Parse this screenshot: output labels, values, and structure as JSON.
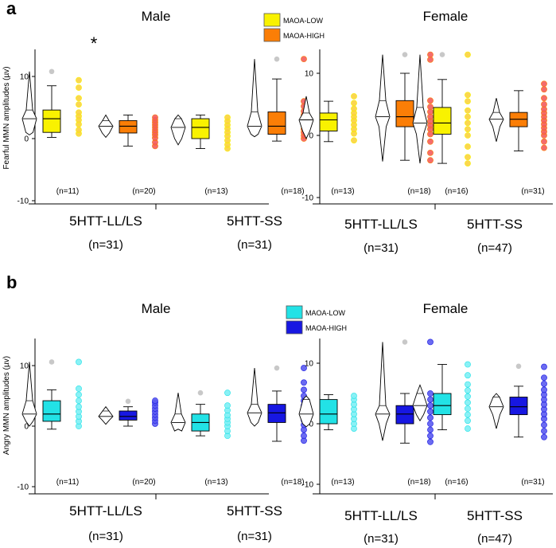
{
  "figure": {
    "panels": [
      {
        "letter": "a",
        "ylabel": "Fearful MMN amplitudes (µv)",
        "legend": [
          "MAOA-LOW",
          "MAOA-HIGH"
        ],
        "colors": {
          "low": "#f9f200",
          "high": "#fb7e06",
          "low_dot": "#fbd13d",
          "high_dot": "#f35c5c"
        }
      },
      {
        "letter": "b",
        "ylabel": "Angry MMN amplitudes (µv)",
        "legend": [
          "MAOA-LOW",
          "MAOA-HIGH"
        ],
        "colors": {
          "low": "#22e2e6",
          "high": "#1717e2",
          "low_dot": "#7df0f5",
          "high_dot": "#5b5bf0"
        }
      }
    ],
    "significance_marker": "*",
    "outlier_color": "#c8c8c8"
  },
  "chart_data": [
    {
      "panel": "a",
      "type": "box+violin",
      "title": "Male",
      "ylabel": "Fearful MMN amplitudes (µv)",
      "ylim": [
        -10,
        14
      ],
      "yticks": [
        -10,
        0,
        10
      ],
      "groups": [
        {
          "label": "5HTT-LL/LS",
          "total": "(n=31)",
          "boxes": [
            {
              "series": "MAOA-LOW",
              "n": "(n=11)",
              "q1": 1.0,
              "median": 3.2,
              "q3": 4.6,
              "whisker_low": 0.2,
              "whisker_high": 8.5,
              "outliers": [
                10.8
              ],
              "violin_min": 0.6,
              "violin_max": 10.8,
              "points": [
                0.8,
                1.4,
                2.3,
                3.0,
                3.6,
                4.2,
                5.5,
                6.5,
                8.2,
                9.4
              ]
            },
            {
              "series": "MAOA-HIGH",
              "n": "(n=20)",
              "q1": 0.9,
              "median": 2.0,
              "q3": 2.9,
              "whisker_low": -1.2,
              "whisker_high": 3.8,
              "outliers": [],
              "violin_min": 0.2,
              "violin_max": 3.8,
              "points": [
                -1.2,
                -0.6,
                0.1,
                0.6,
                1.0,
                1.4,
                1.8,
                2.2,
                2.6,
                3.0,
                3.4
              ]
            }
          ]
        },
        {
          "label": "5HTT-SS",
          "total": "(n=31)",
          "boxes": [
            {
              "series": "MAOA-LOW",
              "n": "(n=13)",
              "q1": 0.0,
              "median": 1.8,
              "q3": 3.2,
              "whisker_low": -1.6,
              "whisker_high": 3.8,
              "outliers": [],
              "violin_min": -1.0,
              "violin_max": 3.8,
              "points": [
                -1.6,
                -1.0,
                -0.3,
                0.4,
                1.0,
                1.6,
                2.2,
                2.8,
                3.4
              ]
            },
            {
              "series": "MAOA-HIGH",
              "n": "(n=18)",
              "q1": 0.7,
              "median": 2.0,
              "q3": 4.3,
              "whisker_low": -0.4,
              "whisker_high": 9.6,
              "outliers": [
                12.8
              ],
              "violin_min": 0.3,
              "violin_max": 12.8,
              "points": [
                0.0,
                0.5,
                1.0,
                1.5,
                2.0,
                2.6,
                3.2,
                3.8,
                4.4,
                5.2,
                6.0,
                12.8
              ]
            }
          ]
        }
      ]
    },
    {
      "panel": "a",
      "type": "box+violin",
      "title": "Female",
      "ylabel": "",
      "ylim": [
        -10,
        14
      ],
      "yticks": [
        -10,
        0,
        10
      ],
      "groups": [
        {
          "label": "5HTT-LL/LS",
          "total": "(n=31)",
          "boxes": [
            {
              "series": "MAOA-LOW",
              "n": "(n=13)",
              "q1": 0.7,
              "median": 2.5,
              "q3": 3.6,
              "whisker_low": -1.0,
              "whisker_high": 5.5,
              "outliers": [],
              "violin_min": -0.5,
              "violin_max": 6.3,
              "points": [
                -0.8,
                0.3,
                1.0,
                1.7,
                2.4,
                3.0,
                3.6,
                4.3,
                5.2,
                6.3
              ]
            },
            {
              "series": "MAOA-HIGH",
              "n": "(n=18)",
              "q1": 1.4,
              "median": 3.0,
              "q3": 5.6,
              "whisker_low": -4.0,
              "whisker_high": 10.0,
              "outliers": [
                13.0
              ],
              "violin_min": -4.2,
              "violin_max": 13.0,
              "points": [
                -4.0,
                -2.8,
                -1.0,
                0.2,
                1.0,
                1.6,
                2.3,
                3.0,
                3.8,
                4.6,
                5.6,
                12.2,
                13.0
              ]
            }
          ]
        },
        {
          "label": "5HTT-SS",
          "total": "(n=47)",
          "boxes": [
            {
              "series": "MAOA-LOW",
              "n": "(n=16)",
              "q1": 0.2,
              "median": 2.0,
              "q3": 4.5,
              "whisker_low": -4.5,
              "whisker_high": 9.0,
              "outliers": [
                13.0
              ],
              "violin_min": -4.5,
              "violin_max": 13.0,
              "points": [
                -4.5,
                -3.5,
                -1.8,
                0.0,
                1.0,
                2.0,
                3.0,
                4.0,
                5.5,
                6.5,
                13.0
              ]
            },
            {
              "series": "MAOA-HIGH",
              "n": "(n=31)",
              "q1": 1.4,
              "median": 2.6,
              "q3": 3.7,
              "whisker_low": -2.5,
              "whisker_high": 7.2,
              "outliers": [],
              "violin_min": -1.0,
              "violin_max": 6.0,
              "points": [
                -2.0,
                -1.0,
                0.0,
                0.6,
                1.2,
                1.8,
                2.4,
                3.0,
                3.6,
                4.2,
                5.0,
                6.0,
                7.4,
                8.3
              ]
            }
          ]
        }
      ]
    },
    {
      "panel": "b",
      "type": "box+violin",
      "title": "Male",
      "ylabel": "Angry MMN amplitudes (µv)",
      "ylim": [
        -10,
        13
      ],
      "yticks": [
        -10,
        0,
        10
      ],
      "groups": [
        {
          "label": "5HTT-LL/LS",
          "total": "(n=31)",
          "boxes": [
            {
              "series": "MAOA-LOW",
              "n": "(n=11)",
              "q1": 0.8,
              "median": 2.0,
              "q3": 4.2,
              "whisker_low": -0.5,
              "whisker_high": 6.0,
              "outliers": [
                10.6
              ],
              "violin_min": 0.0,
              "violin_max": 10.6,
              "points": [
                0.0,
                0.8,
                1.6,
                2.4,
                3.2,
                4.2,
                5.2,
                6.2,
                10.6
              ]
            },
            {
              "series": "MAOA-HIGH",
              "n": "(n=20)",
              "q1": 1.0,
              "median": 1.6,
              "q3": 2.5,
              "whisker_low": 0.0,
              "whisker_high": 3.2,
              "outliers": [
                4.1
              ],
              "violin_min": 0.3,
              "violin_max": 3.2,
              "points": [
                0.4,
                0.9,
                1.4,
                1.9,
                2.4,
                2.9,
                3.4,
                3.9,
                4.2
              ]
            }
          ]
        },
        {
          "label": "5HTT-SS",
          "total": "(n=31)",
          "boxes": [
            {
              "series": "MAOA-LOW",
              "n": "(n=13)",
              "q1": -0.8,
              "median": 0.6,
              "q3": 2.0,
              "whisker_low": -1.6,
              "whisker_high": 3.6,
              "outliers": [
                5.5
              ],
              "violin_min": -0.5,
              "violin_max": 5.5,
              "points": [
                -1.6,
                -0.8,
                0.0,
                0.6,
                1.2,
                1.8,
                2.6,
                3.4,
                5.5
              ]
            },
            {
              "series": "MAOA-HIGH",
              "n": "(n=18)",
              "q1": 0.6,
              "median": 2.2,
              "q3": 3.6,
              "whisker_low": -2.5,
              "whisker_high": 5.8,
              "outliers": [
                9.6
              ],
              "violin_min": 0.0,
              "violin_max": 9.6,
              "points": [
                -2.4,
                -1.6,
                -0.6,
                0.2,
                1.0,
                1.8,
                2.6,
                3.4,
                4.2,
                5.0,
                6.0,
                7.2,
                9.6
              ]
            }
          ]
        }
      ]
    },
    {
      "panel": "b",
      "type": "box+violin",
      "title": "Female",
      "ylabel": "",
      "ylim": [
        -10,
        14
      ],
      "yticks": [
        -10,
        0,
        10
      ],
      "groups": [
        {
          "label": "5HTT-LL/LS",
          "total": "(n=31)",
          "boxes": [
            {
              "series": "MAOA-LOW",
              "n": "(n=13)",
              "q1": 0.0,
              "median": 1.6,
              "q3": 4.0,
              "whisker_low": -1.0,
              "whisker_high": 4.8,
              "outliers": [],
              "violin_min": -0.5,
              "violin_max": 4.6,
              "points": [
                -0.8,
                0.0,
                0.8,
                1.6,
                2.4,
                3.2,
                4.0,
                4.6
              ]
            },
            {
              "series": "MAOA-HIGH",
              "n": "(n=18)",
              "q1": 0.0,
              "median": 1.6,
              "q3": 3.0,
              "whisker_low": -3.2,
              "whisker_high": 5.0,
              "outliers": [
                13.5
              ],
              "violin_min": -2.8,
              "violin_max": 13.5,
              "points": [
                -3.0,
                -2.0,
                -1.0,
                0.0,
                1.0,
                2.0,
                3.0,
                4.0,
                5.0,
                13.5
              ]
            }
          ]
        },
        {
          "label": "5HTT-SS",
          "total": "(n=47)",
          "boxes": [
            {
              "series": "MAOA-LOW",
              "n": "(n=16)",
              "q1": 1.5,
              "median": 3.0,
              "q3": 5.0,
              "whisker_low": -1.0,
              "whisker_high": 9.8,
              "outliers": [],
              "violin_min": 0.5,
              "violin_max": 6.4,
              "points": [
                -0.8,
                0.5,
                1.5,
                2.5,
                3.5,
                4.5,
                5.5,
                6.5,
                8.0,
                9.8
              ]
            },
            {
              "series": "MAOA-HIGH",
              "n": "(n=31)",
              "q1": 1.5,
              "median": 2.8,
              "q3": 4.4,
              "whisker_low": -2.2,
              "whisker_high": 6.2,
              "outliers": [
                9.5
              ],
              "violin_min": -0.8,
              "violin_max": 5.0,
              "points": [
                -2.2,
                -1.2,
                -0.2,
                0.8,
                1.6,
                2.4,
                3.2,
                4.0,
                4.8,
                5.6,
                6.6,
                7.6,
                9.4
              ]
            }
          ]
        }
      ]
    }
  ]
}
